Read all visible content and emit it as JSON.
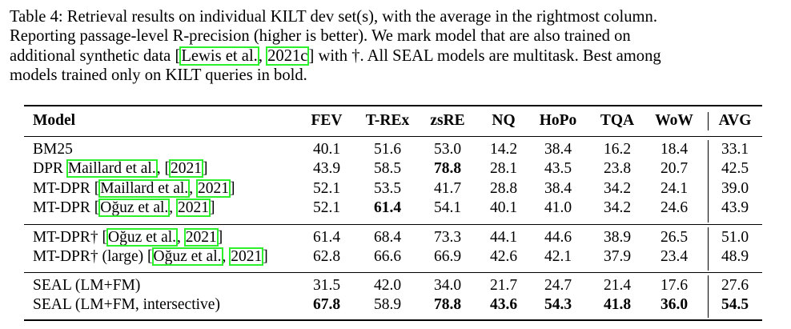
{
  "caption": {
    "line1": "Table 4: Retrieval results on individual KILT dev set(s), with the average in the rightmost column.",
    "line2": "Reporting passage-level R-precision (higher is better).  We mark model that are also trained on",
    "line3_a": "additional synthetic data [",
    "line3_cite1": "Lewis et al.",
    "line3_sep": ", ",
    "line3_cite2": "2021c",
    "line3_b": "] with †. All SEAL models are multitask. Best among",
    "line4": "models trained only on KILT queries in bold."
  },
  "table": {
    "headers": [
      "Model",
      "FEV",
      "T-REx",
      "zsRE",
      "NQ",
      "HoPo",
      "TQA",
      "WoW",
      "AVG"
    ],
    "rows": [
      {
        "model_prefix": "BM25",
        "cite_a": "",
        "mid": "",
        "cite_b": "",
        "suffix": "",
        "values": [
          "40.1",
          "51.6",
          "53.0",
          "14.2",
          "38.4",
          "16.2",
          "18.4",
          "33.1"
        ],
        "bold": []
      },
      {
        "model_prefix": "DPR ",
        "cite_a": "Maillard et al.",
        "mid": ", [",
        "cite_b": "2021",
        "suffix": "]",
        "values": [
          "43.9",
          "58.5",
          "78.8",
          "28.1",
          "43.5",
          "23.8",
          "20.7",
          "42.5"
        ],
        "bold": [
          2
        ]
      },
      {
        "model_prefix": "MT-DPR [",
        "cite_a": "Maillard et al.",
        "mid": ", ",
        "cite_b": "2021",
        "suffix": "]",
        "values": [
          "52.1",
          "53.5",
          "41.7",
          "28.8",
          "38.4",
          "34.2",
          "24.1",
          "39.0"
        ],
        "bold": []
      },
      {
        "model_prefix": "MT-DPR [",
        "cite_a": "Oğuz et al.",
        "mid": ", ",
        "cite_b": "2021",
        "suffix": "]",
        "values": [
          "52.1",
          "61.4",
          "54.1",
          "40.1",
          "41.0",
          "34.2",
          "24.6",
          "43.9"
        ],
        "bold": [
          1
        ]
      },
      {
        "model_prefix": "MT-DPR† [",
        "cite_a": "Oğuz et al.",
        "mid": ", ",
        "cite_b": "2021",
        "suffix": "]",
        "values": [
          "61.4",
          "68.4",
          "73.3",
          "44.1",
          "44.6",
          "38.9",
          "26.5",
          "51.0"
        ],
        "bold": []
      },
      {
        "model_prefix": "MT-DPR† (large) [",
        "cite_a": "Oğuz et al.",
        "mid": ", ",
        "cite_b": "2021",
        "suffix": "]",
        "values": [
          "62.8",
          "66.6",
          "66.9",
          "42.6",
          "42.1",
          "37.9",
          "23.4",
          "48.9"
        ],
        "bold": []
      },
      {
        "model_prefix": "SEAL (LM+FM)",
        "cite_a": "",
        "mid": "",
        "cite_b": "",
        "suffix": "",
        "values": [
          "31.5",
          "42.0",
          "34.0",
          "21.7",
          "24.7",
          "21.4",
          "17.6",
          "27.6"
        ],
        "bold": []
      },
      {
        "model_prefix": "SEAL (LM+FM, intersective)",
        "cite_a": "",
        "mid": "",
        "cite_b": "",
        "suffix": "",
        "values": [
          "67.8",
          "58.9",
          "78.8",
          "43.6",
          "54.3",
          "41.8",
          "36.0",
          "54.5"
        ],
        "bold": [
          0,
          2,
          3,
          4,
          5,
          6,
          7
        ]
      }
    ]
  }
}
